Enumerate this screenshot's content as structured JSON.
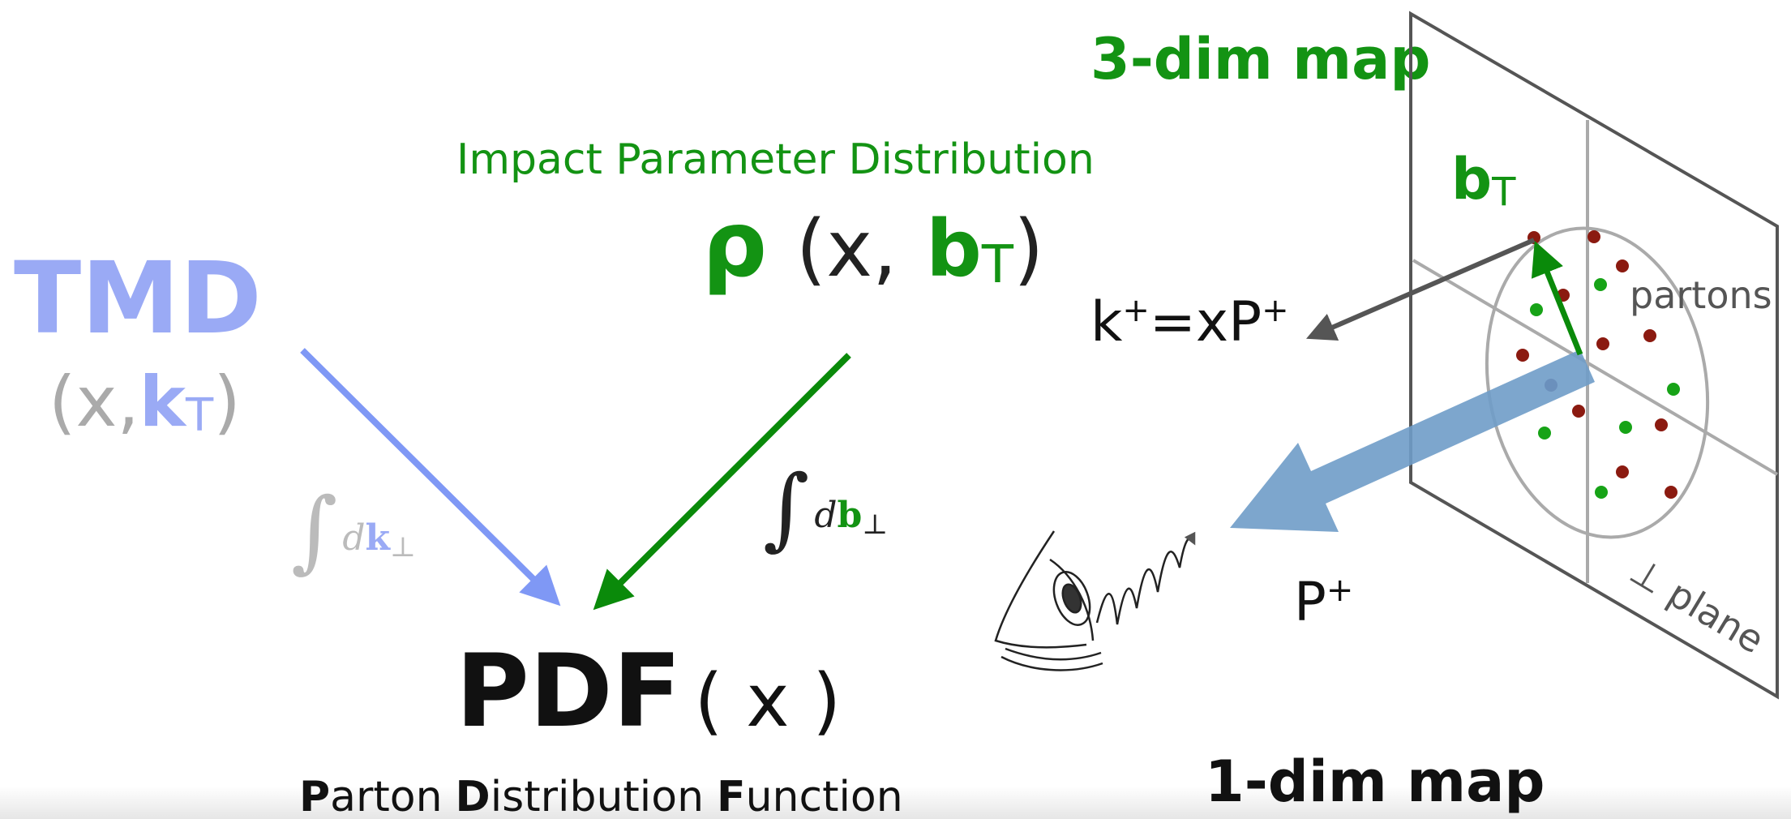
{
  "labels": {
    "three_dim_map": "3-dim map",
    "impact_parameter": "Impact Parameter Distribution",
    "rho": {
      "symbol": "ρ",
      "args": "(x,",
      "vector": "b",
      "subscript": "T",
      "close": ")"
    },
    "tmd": {
      "name": "TMD",
      "args": "(x,",
      "vector": "k",
      "subscript": "T",
      "close": ")"
    },
    "int_k": {
      "integral": "∫",
      "d": "d",
      "vector": "k",
      "subscript": "⊥"
    },
    "int_b": {
      "integral": "∫",
      "d": "d",
      "vector": "b",
      "subscript": "⊥"
    },
    "pdf": {
      "name": "PDF",
      "args": "( x )"
    },
    "pdf_full": [
      "P",
      "arton",
      "D",
      "istribution",
      "F",
      "unction"
    ],
    "b_t": {
      "vector": "b",
      "subscript": "T"
    },
    "k_plus": {
      "k": "k",
      "sup1": "+",
      "eq": "=xP",
      "sup2": "+"
    },
    "partons": "partons",
    "p_plus": {
      "p": "P",
      "sup": "+"
    },
    "perp_plane": "⊥ plane",
    "one_dim_map": "1-dim map"
  }
}
